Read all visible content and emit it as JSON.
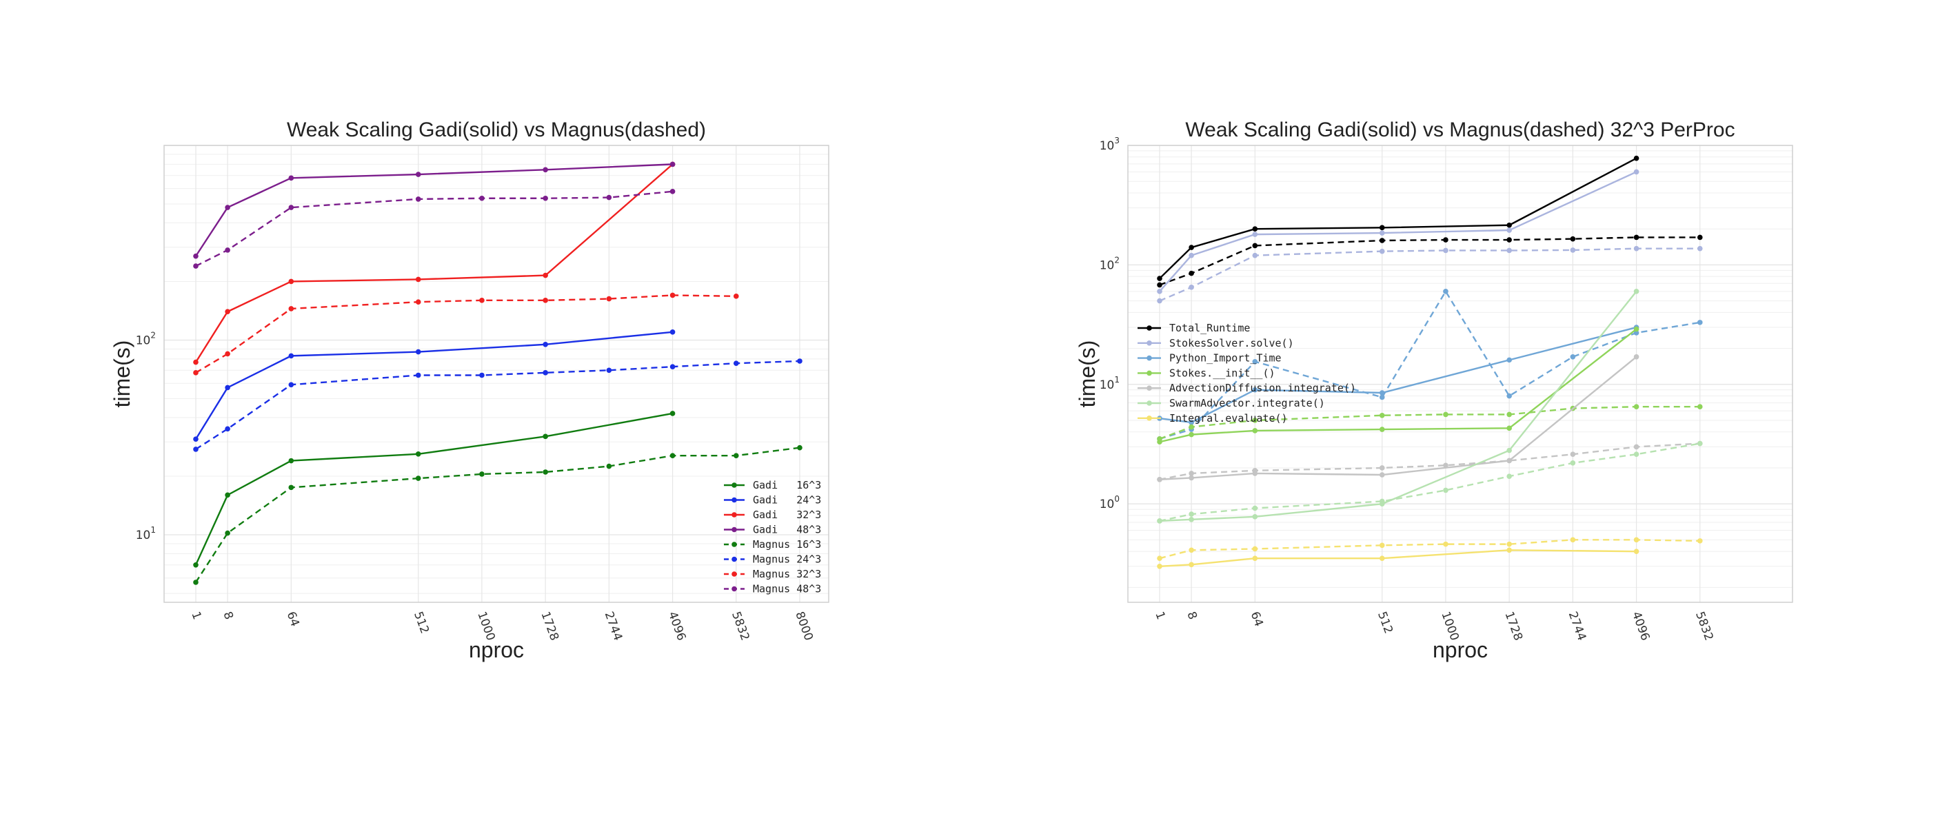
{
  "chart_data": [
    {
      "type": "line",
      "title": "Weak Scaling Gadi(solid) vs Magnus(dashed)",
      "xlabel": "nproc",
      "ylabel": "time(s)",
      "xscale": "log (cube-root spaced)",
      "yscale": "log",
      "ylim": [
        4.5,
        1000
      ],
      "xticks": [
        "1",
        "8",
        "64",
        "512",
        "1000",
        "1728",
        "2744",
        "4096",
        "5832",
        "8000"
      ],
      "yticks": [
        {
          "value": 10,
          "base": "10",
          "exp": "1"
        },
        {
          "value": 100,
          "base": "10",
          "exp": "2"
        }
      ],
      "grid": true,
      "legend_position": "lower-right",
      "series": [
        {
          "name": "Gadi   16^3",
          "color": "#107c10",
          "dashed": false,
          "x": [
            1,
            8,
            64,
            512,
            1728,
            4096
          ],
          "y": [
            7,
            16,
            24,
            26,
            32,
            42
          ]
        },
        {
          "name": "Gadi   24^3",
          "color": "#1a2fe6",
          "dashed": false,
          "x": [
            1,
            8,
            64,
            512,
            1728,
            4096
          ],
          "y": [
            31,
            57,
            83,
            87,
            95,
            110
          ]
        },
        {
          "name": "Gadi   32^3",
          "color": "#f02020",
          "dashed": false,
          "x": [
            1,
            8,
            64,
            512,
            1728,
            4096
          ],
          "y": [
            77,
            140,
            200,
            205,
            215,
            800
          ]
        },
        {
          "name": "Gadi   48^3",
          "color": "#7c1e8c",
          "dashed": false,
          "x": [
            1,
            8,
            64,
            512,
            1728,
            4096
          ],
          "y": [
            270,
            480,
            680,
            710,
            750,
            800
          ]
        },
        {
          "name": "Magnus 16^3",
          "color": "#107c10",
          "dashed": true,
          "x": [
            1,
            8,
            64,
            512,
            1000,
            1728,
            2744,
            4096,
            5832,
            8000
          ],
          "y": [
            5.7,
            10.2,
            17.5,
            19.5,
            20.5,
            21,
            22.5,
            25.5,
            25.5,
            28
          ]
        },
        {
          "name": "Magnus 24^3",
          "color": "#1a2fe6",
          "dashed": true,
          "x": [
            1,
            8,
            64,
            512,
            1000,
            1728,
            2744,
            4096,
            5832,
            8000
          ],
          "y": [
            27.5,
            35,
            59,
            66,
            66,
            68,
            70,
            73,
            76,
            78
          ]
        },
        {
          "name": "Magnus 32^3",
          "color": "#f02020",
          "dashed": true,
          "x": [
            1,
            8,
            64,
            512,
            1000,
            1728,
            2744,
            4096,
            5832
          ],
          "y": [
            68,
            85,
            145,
            157,
            160,
            160,
            163,
            170,
            168
          ]
        },
        {
          "name": "Magnus 48^3",
          "color": "#7c1e8c",
          "dashed": true,
          "x": [
            1,
            8,
            64,
            512,
            1000,
            1728,
            2744,
            4096
          ],
          "y": [
            240,
            290,
            480,
            530,
            535,
            535,
            540,
            580
          ]
        }
      ]
    },
    {
      "type": "line",
      "title": "Weak Scaling Gadi(solid) vs Magnus(dashed) 32^3 PerProc",
      "xlabel": "nproc",
      "ylabel": "time(s)",
      "xscale": "log (cube-root spaced)",
      "yscale": "log",
      "ylim": [
        0.15,
        1000
      ],
      "xticks": [
        "1",
        "8",
        "64",
        "512",
        "1000",
        "1728",
        "2744",
        "4096",
        "5832"
      ],
      "yticks": [
        {
          "value": 1,
          "base": "10",
          "exp": "0"
        },
        {
          "value": 10,
          "base": "10",
          "exp": "1"
        },
        {
          "value": 100,
          "base": "10",
          "exp": "2"
        },
        {
          "value": 1000,
          "base": "10",
          "exp": "3"
        }
      ],
      "grid": true,
      "legend_position": "center-left",
      "series": [
        {
          "name": "Total_Runtime",
          "color": "#000000",
          "dashed": false,
          "x": [
            1,
            8,
            64,
            512,
            1728,
            4096
          ],
          "y": [
            77,
            140,
            200,
            205,
            215,
            780
          ]
        },
        {
          "name": "",
          "color": "#000000",
          "dashed": true,
          "x": [
            1,
            8,
            64,
            512,
            1000,
            1728,
            2744,
            4096,
            5832
          ],
          "y": [
            68,
            85,
            145,
            160,
            162,
            162,
            165,
            170,
            170
          ]
        },
        {
          "name": "StokesSolver.solve()",
          "color": "#aab4de",
          "dashed": false,
          "x": [
            1,
            8,
            64,
            512,
            1728,
            4096
          ],
          "y": [
            60,
            120,
            180,
            185,
            195,
            600
          ]
        },
        {
          "name": "",
          "color": "#aab4de",
          "dashed": true,
          "x": [
            1,
            8,
            64,
            512,
            1000,
            1728,
            2744,
            4096,
            5832
          ],
          "y": [
            50,
            65,
            120,
            130,
            132,
            132,
            133,
            137,
            137
          ]
        },
        {
          "name": "Python_Import_Time",
          "color": "#6fa6d6",
          "dashed": false,
          "x": [
            1,
            8,
            64,
            512,
            1728,
            4096
          ],
          "y": [
            5.2,
            4.8,
            9,
            8.5,
            16,
            30
          ]
        },
        {
          "name": "",
          "color": "#6fa6d6",
          "dashed": true,
          "x": [
            1,
            8,
            64,
            512,
            1000,
            1728,
            2744,
            4096,
            5832
          ],
          "y": [
            3.5,
            4.2,
            15.5,
            7.8,
            60,
            8,
            17,
            27,
            33
          ]
        },
        {
          "name": "Stokes.__init__()",
          "color": "#8fd45a",
          "dashed": false,
          "x": [
            1,
            8,
            64,
            512,
            1728,
            4096
          ],
          "y": [
            3.3,
            3.8,
            4.1,
            4.2,
            4.3,
            29
          ]
        },
        {
          "name": "",
          "color": "#8fd45a",
          "dashed": true,
          "x": [
            1,
            8,
            64,
            512,
            1000,
            1728,
            2744,
            4096,
            5832
          ],
          "y": [
            3.5,
            4.4,
            5,
            5.5,
            5.6,
            5.6,
            6.3,
            6.5,
            6.5
          ]
        },
        {
          "name": "AdvectionDiffusion.integrate()",
          "color": "#c4c4c4",
          "dashed": false,
          "x": [
            1,
            8,
            64,
            512,
            1728,
            4096
          ],
          "y": [
            1.6,
            1.65,
            1.8,
            1.75,
            2.3,
            17
          ]
        },
        {
          "name": "",
          "color": "#c4c4c4",
          "dashed": true,
          "x": [
            1,
            8,
            64,
            512,
            1000,
            1728,
            2744,
            4096,
            5832
          ],
          "y": [
            1.6,
            1.8,
            1.9,
            2.0,
            2.1,
            2.3,
            2.6,
            3.0,
            3.2
          ]
        },
        {
          "name": "SwarmAdvector.integrate()",
          "color": "#b6e2b0",
          "dashed": false,
          "x": [
            1,
            8,
            64,
            512,
            1728,
            4096
          ],
          "y": [
            0.72,
            0.74,
            0.78,
            1.0,
            2.8,
            60
          ]
        },
        {
          "name": "",
          "color": "#b6e2b0",
          "dashed": true,
          "x": [
            1,
            8,
            64,
            512,
            1000,
            1728,
            2744,
            4096,
            5832
          ],
          "y": [
            0.72,
            0.82,
            0.92,
            1.05,
            1.3,
            1.7,
            2.2,
            2.6,
            3.2
          ]
        },
        {
          "name": "Integral.evaluate()",
          "color": "#f5e270",
          "dashed": false,
          "x": [
            1,
            8,
            64,
            512,
            1728,
            4096
          ],
          "y": [
            0.3,
            0.31,
            0.35,
            0.35,
            0.41,
            0.4
          ]
        },
        {
          "name": "",
          "color": "#f5e270",
          "dashed": true,
          "x": [
            1,
            8,
            64,
            512,
            1000,
            1728,
            2744,
            4096,
            5832
          ],
          "y": [
            0.35,
            0.41,
            0.42,
            0.45,
            0.46,
            0.46,
            0.5,
            0.5,
            0.49
          ]
        }
      ]
    }
  ]
}
